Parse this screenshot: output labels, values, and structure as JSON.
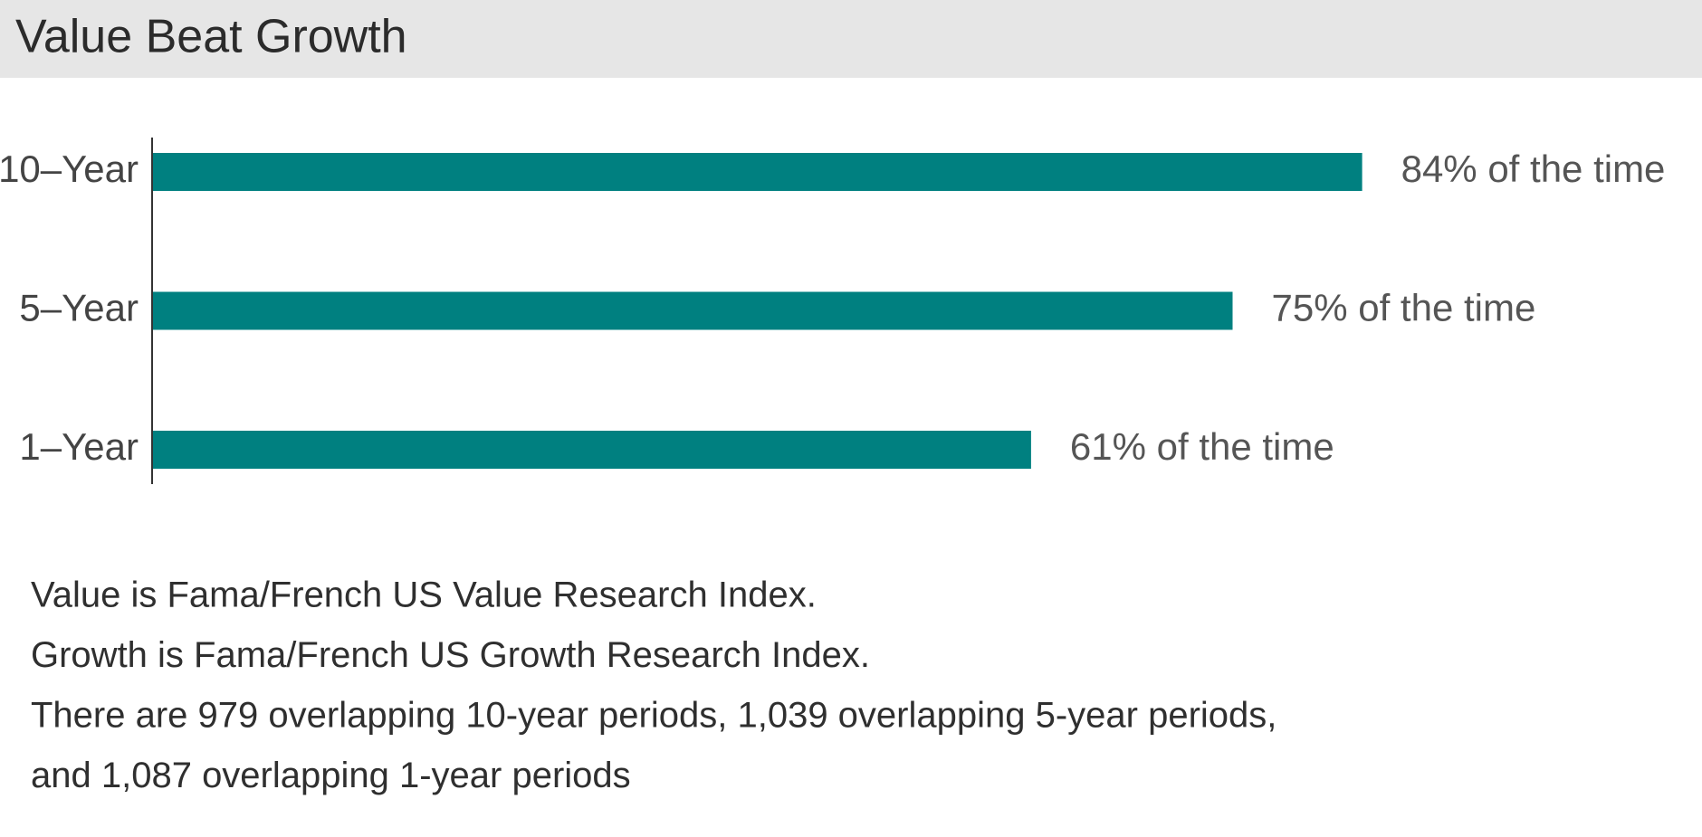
{
  "chart_data": {
    "type": "bar",
    "orientation": "horizontal",
    "title": "Value Beat Growth",
    "categories": [
      "10–Year",
      "5–Year",
      "1–Year"
    ],
    "values": [
      84,
      75,
      61
    ],
    "value_labels": [
      "84% of the time",
      "75% of the time",
      "61% of the time"
    ],
    "color": "#008080"
  },
  "notes": [
    "Value is Fama/French US Value Research Index.",
    "Growth is Fama/French US Growth Research Index.",
    "There are 979 overlapping 10-year periods, 1,039 overlapping 5-year periods,",
    "and 1,087 overlapping 1-year periods"
  ]
}
